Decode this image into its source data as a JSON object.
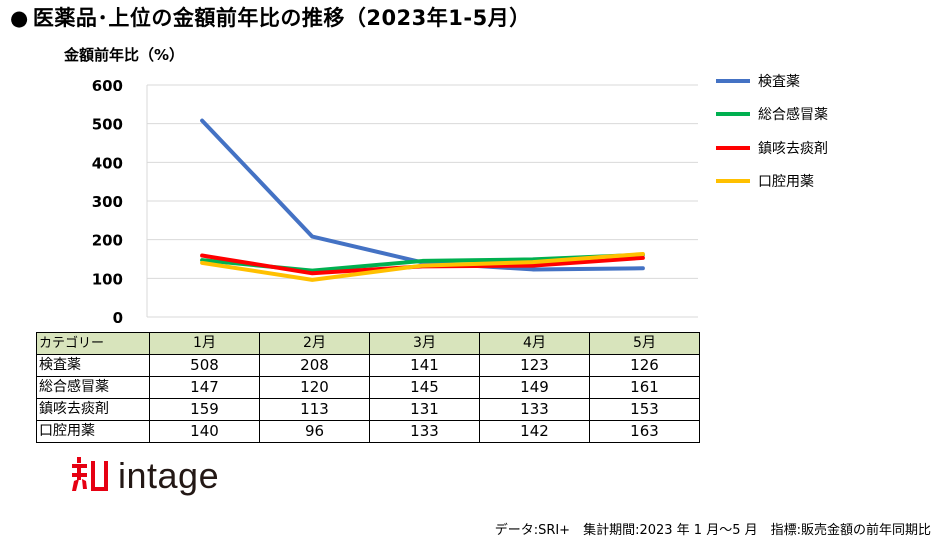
{
  "title": "医薬品･上位の金額前年比の推移（2023年1-5月）",
  "bullet": "●",
  "y_axis_title": "金額前年比（%）",
  "chart_data": {
    "type": "line",
    "title": "医薬品･上位の金額前年比の推移（2023年1-5月）",
    "ylabel": "金額前年比（%）",
    "categories": [
      "1月",
      "2月",
      "3月",
      "4月",
      "5月"
    ],
    "ylim": [
      0,
      600
    ],
    "yticks": [
      0,
      100,
      200,
      300,
      400,
      500,
      600
    ],
    "grid": true,
    "legend_position": "right",
    "series": [
      {
        "name": "検査薬",
        "color": "#4472c4",
        "values": [
          508,
          208,
          141,
          123,
          126
        ]
      },
      {
        "name": "総合感冒薬",
        "color": "#00b050",
        "values": [
          147,
          120,
          145,
          149,
          161
        ]
      },
      {
        "name": "鎮咳去痰剤",
        "color": "#ff0000",
        "values": [
          159,
          113,
          131,
          133,
          153
        ]
      },
      {
        "name": "口腔用薬",
        "color": "#ffc000",
        "values": [
          140,
          96,
          133,
          142,
          163
        ]
      }
    ]
  },
  "table": {
    "header_label": "カテゴリー"
  },
  "logo": {
    "text": "intage",
    "color": "#e60012"
  },
  "footer": "データ:SRI+　集計期間:2023 年 1 月～5 月　指標:販売金額の前年同期比"
}
